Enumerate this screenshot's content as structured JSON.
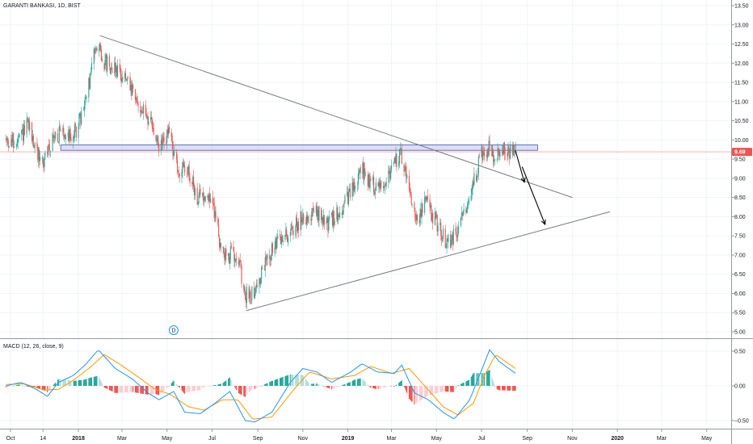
{
  "header": {
    "symbol": "GARANTI BANKASI",
    "interval": "1D",
    "exchange": "BIST"
  },
  "macd_panel": {
    "title": "MACD (12, 26, close, 9)"
  },
  "event_marker": {
    "label": "D",
    "date": "2018-05-10"
  },
  "colors": {
    "candle_up": "#26a69a",
    "candle_down": "#ef5350",
    "hist_up_strong": "#26a69a",
    "hist_up_weak": "#b2dfdb",
    "hist_down_strong": "#ef5350",
    "hist_down_weak": "#ffcdd2",
    "macd_line": "#2196f3",
    "signal_line": "#ff9800",
    "price_line": "#ef5350",
    "resistance_zone": "#c5cae9",
    "trendline": "#787b86",
    "arrow": "#000000"
  },
  "chart_data": [
    {
      "type": "candlestick",
      "title": "GARANTI BANKASI, 1D, BIST",
      "ylim": [
        4.9,
        13.6
      ],
      "y_ticks": [
        "5.00",
        "5.50",
        "6.00",
        "6.50",
        "7.00",
        "7.50",
        "8.00",
        "8.50",
        "9.00",
        "9.50",
        "10.00",
        "10.50",
        "11.00",
        "11.50",
        "12.00",
        "12.50",
        "13.00",
        "13.50"
      ],
      "x_ticks": [
        {
          "label": "Oct",
          "date": "2017-10-01"
        },
        {
          "label": "14",
          "date": "2017-11-14"
        },
        {
          "label": "2018",
          "date": "2018-01-01"
        },
        {
          "label": "Mar",
          "date": "2018-03-01"
        },
        {
          "label": "May",
          "date": "2018-05-01"
        },
        {
          "label": "Jul",
          "date": "2018-07-01"
        },
        {
          "label": "Sep",
          "date": "2018-09-01"
        },
        {
          "label": "Nov",
          "date": "2018-11-01"
        },
        {
          "label": "2019",
          "date": "2019-01-01"
        },
        {
          "label": "Mar",
          "date": "2019-03-01"
        },
        {
          "label": "May",
          "date": "2019-05-01"
        },
        {
          "label": "Jul",
          "date": "2019-07-01"
        },
        {
          "label": "Sep",
          "date": "2019-09-01"
        },
        {
          "label": "Nov",
          "date": "2019-11-01"
        },
        {
          "label": "2020",
          "date": "2020-01-01"
        },
        {
          "label": "Mar",
          "date": "2020-03-01"
        },
        {
          "label": "May",
          "date": "2020-05-01"
        }
      ],
      "last_price": 9.69,
      "last_price_label": "9.69",
      "price_path": [
        [
          "2017-09-25",
          10.0
        ],
        [
          "2017-10-10",
          9.9
        ],
        [
          "2017-10-25",
          10.4
        ],
        [
          "2017-11-05",
          9.7
        ],
        [
          "2017-11-15",
          9.4
        ],
        [
          "2017-11-25",
          10.0
        ],
        [
          "2017-12-10",
          10.2
        ],
        [
          "2017-12-25",
          10.1
        ],
        [
          "2018-01-05",
          10.6
        ],
        [
          "2018-01-15",
          11.4
        ],
        [
          "2018-01-25",
          12.6
        ],
        [
          "2018-02-05",
          12.0
        ],
        [
          "2018-02-20",
          11.9
        ],
        [
          "2018-03-05",
          11.6
        ],
        [
          "2018-03-20",
          11.0
        ],
        [
          "2018-04-05",
          10.6
        ],
        [
          "2018-04-20",
          9.8
        ],
        [
          "2018-05-05",
          10.2
        ],
        [
          "2018-05-15",
          9.2
        ],
        [
          "2018-05-30",
          9.2
        ],
        [
          "2018-06-10",
          8.5
        ],
        [
          "2018-06-25",
          8.6
        ],
        [
          "2018-07-05",
          8.1
        ],
        [
          "2018-07-15",
          7.0
        ],
        [
          "2018-07-25",
          7.0
        ],
        [
          "2018-08-05",
          7.1
        ],
        [
          "2018-08-13",
          5.9
        ],
        [
          "2018-08-20",
          6.0
        ],
        [
          "2018-09-01",
          6.2
        ],
        [
          "2018-09-15",
          7.0
        ],
        [
          "2018-10-01",
          7.4
        ],
        [
          "2018-10-15",
          7.6
        ],
        [
          "2018-11-01",
          8.0
        ],
        [
          "2018-11-20",
          8.1
        ],
        [
          "2018-12-05",
          7.8
        ],
        [
          "2018-12-20",
          8.1
        ],
        [
          "2019-01-05",
          8.6
        ],
        [
          "2019-01-20",
          9.2
        ],
        [
          "2019-02-05",
          8.8
        ],
        [
          "2019-02-20",
          8.9
        ],
        [
          "2019-03-05",
          9.4
        ],
        [
          "2019-03-15",
          9.6
        ],
        [
          "2019-03-25",
          8.8
        ],
        [
          "2019-04-05",
          7.8
        ],
        [
          "2019-04-15",
          8.4
        ],
        [
          "2019-04-30",
          7.9
        ],
        [
          "2019-05-15",
          7.3
        ],
        [
          "2019-05-30",
          7.6
        ],
        [
          "2019-06-10",
          8.3
        ],
        [
          "2019-06-20",
          8.9
        ],
        [
          "2019-07-01",
          9.6
        ],
        [
          "2019-07-10",
          9.8
        ],
        [
          "2019-07-20",
          9.5
        ],
        [
          "2019-07-30",
          9.8
        ],
        [
          "2019-08-10",
          9.7
        ],
        [
          "2019-08-16",
          9.69
        ]
      ],
      "resistance_zone": {
        "x1": "2017-12-08",
        "x2": "2019-09-15",
        "y1": 9.73,
        "y2": 9.87
      },
      "trendlines": [
        {
          "x1": "2018-01-30",
          "y1": 12.72,
          "x2": "2019-11-01",
          "y2": 8.5
        },
        {
          "x1": "2018-08-16",
          "y1": 5.55,
          "x2": "2019-12-22",
          "y2": 8.13
        }
      ],
      "arrows": [
        {
          "x1": "2019-08-16",
          "y1": 9.72,
          "x2": "2019-08-28",
          "y2": 8.9
        },
        {
          "x1": "2019-08-25",
          "y1": 9.3,
          "x2": "2019-09-25",
          "y2": 7.8
        }
      ]
    },
    {
      "type": "macd",
      "title": "MACD (12, 26, close, 9)",
      "ylim": [
        -0.62,
        0.62
      ],
      "y_ticks": [
        "0.50",
        "0.00",
        "−0.50"
      ],
      "macd_path": [
        [
          "2017-09-25",
          0.0
        ],
        [
          "2017-10-15",
          0.05
        ],
        [
          "2017-11-05",
          -0.05
        ],
        [
          "2017-11-20",
          -0.15
        ],
        [
          "2017-12-05",
          0.05
        ],
        [
          "2017-12-25",
          0.15
        ],
        [
          "2018-01-10",
          0.3
        ],
        [
          "2018-01-28",
          0.52
        ],
        [
          "2018-02-20",
          0.25
        ],
        [
          "2018-03-15",
          0.1
        ],
        [
          "2018-04-05",
          -0.1
        ],
        [
          "2018-04-20",
          -0.2
        ],
        [
          "2018-05-10",
          -0.08
        ],
        [
          "2018-05-25",
          -0.38
        ],
        [
          "2018-06-15",
          -0.4
        ],
        [
          "2018-07-05",
          -0.25
        ],
        [
          "2018-07-25",
          -0.08
        ],
        [
          "2018-08-15",
          -0.5
        ],
        [
          "2018-08-28",
          -0.52
        ],
        [
          "2018-09-20",
          -0.38
        ],
        [
          "2018-10-15",
          0.05
        ],
        [
          "2018-11-01",
          0.25
        ],
        [
          "2018-11-20",
          0.2
        ],
        [
          "2018-12-10",
          0.05
        ],
        [
          "2019-01-05",
          0.2
        ],
        [
          "2019-01-20",
          0.32
        ],
        [
          "2019-02-10",
          0.2
        ],
        [
          "2019-03-05",
          0.18
        ],
        [
          "2019-03-15",
          0.3
        ],
        [
          "2019-04-01",
          -0.1
        ],
        [
          "2019-04-20",
          -0.2
        ],
        [
          "2019-05-10",
          -0.38
        ],
        [
          "2019-05-25",
          -0.48
        ],
        [
          "2019-06-15",
          -0.2
        ],
        [
          "2019-06-30",
          0.2
        ],
        [
          "2019-07-12",
          0.52
        ],
        [
          "2019-07-25",
          0.35
        ],
        [
          "2019-08-16",
          0.18
        ]
      ],
      "signal_path": [
        [
          "2017-09-25",
          0.02
        ],
        [
          "2017-10-20",
          0.03
        ],
        [
          "2017-11-15",
          -0.06
        ],
        [
          "2017-12-05",
          -0.05
        ],
        [
          "2017-12-25",
          0.08
        ],
        [
          "2018-01-15",
          0.25
        ],
        [
          "2018-02-05",
          0.45
        ],
        [
          "2018-02-25",
          0.32
        ],
        [
          "2018-03-20",
          0.15
        ],
        [
          "2018-04-15",
          -0.05
        ],
        [
          "2018-05-05",
          -0.12
        ],
        [
          "2018-05-30",
          -0.3
        ],
        [
          "2018-06-20",
          -0.35
        ],
        [
          "2018-07-15",
          -0.2
        ],
        [
          "2018-08-05",
          -0.2
        ],
        [
          "2018-08-25",
          -0.48
        ],
        [
          "2018-09-20",
          -0.45
        ],
        [
          "2018-10-20",
          -0.05
        ],
        [
          "2018-11-10",
          0.2
        ],
        [
          "2018-12-10",
          0.1
        ],
        [
          "2019-01-10",
          0.15
        ],
        [
          "2019-02-01",
          0.28
        ],
        [
          "2019-03-01",
          0.18
        ],
        [
          "2019-03-25",
          0.25
        ],
        [
          "2019-04-15",
          0.0
        ],
        [
          "2019-05-10",
          -0.3
        ],
        [
          "2019-05-30",
          -0.42
        ],
        [
          "2019-06-20",
          -0.25
        ],
        [
          "2019-07-05",
          0.15
        ],
        [
          "2019-07-20",
          0.45
        ],
        [
          "2019-08-16",
          0.25
        ]
      ]
    }
  ]
}
